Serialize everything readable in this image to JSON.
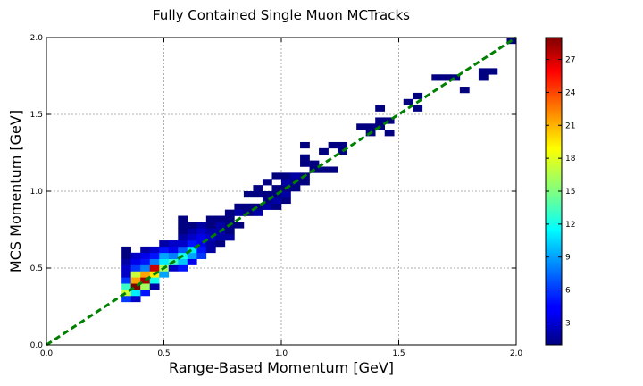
{
  "chart_data": {
    "type": "heatmap",
    "title": "Fully Contained Single Muon MCTracks",
    "xlabel": "Range-Based Momentum [GeV]",
    "ylabel": "MCS Momentum [GeV]",
    "xlim": [
      0.0,
      2.0
    ],
    "ylim": [
      0.0,
      2.0
    ],
    "xticks": [
      "0.0",
      "0.5",
      "1.0",
      "1.5",
      "2.0"
    ],
    "yticks": [
      "0.0",
      "0.5",
      "1.0",
      "1.5",
      "2.0"
    ],
    "bin_width": 0.04,
    "grid": true,
    "colormap": "jet",
    "colorbar": {
      "min": 1,
      "max": 29,
      "ticks": [
        "3",
        "6",
        "9",
        "12",
        "15",
        "18",
        "21",
        "24",
        "27"
      ]
    },
    "reference_line": {
      "from": [
        0.0,
        0.0
      ],
      "to": [
        2.0,
        2.0
      ],
      "color": "#008000",
      "style": "dashed"
    },
    "bins": [
      {
        "x": 0.32,
        "y": 0.28,
        "v": 6
      },
      {
        "x": 0.36,
        "y": 0.28,
        "v": 3
      },
      {
        "x": 0.32,
        "y": 0.32,
        "v": 17
      },
      {
        "x": 0.36,
        "y": 0.32,
        "v": 11
      },
      {
        "x": 0.4,
        "y": 0.32,
        "v": 5
      },
      {
        "x": 0.32,
        "y": 0.36,
        "v": 13
      },
      {
        "x": 0.36,
        "y": 0.36,
        "v": 29
      },
      {
        "x": 0.4,
        "y": 0.36,
        "v": 16
      },
      {
        "x": 0.44,
        "y": 0.36,
        "v": 2
      },
      {
        "x": 0.32,
        "y": 0.4,
        "v": 6
      },
      {
        "x": 0.36,
        "y": 0.4,
        "v": 21
      },
      {
        "x": 0.4,
        "y": 0.4,
        "v": 28
      },
      {
        "x": 0.44,
        "y": 0.4,
        "v": 12
      },
      {
        "x": 0.32,
        "y": 0.44,
        "v": 3
      },
      {
        "x": 0.36,
        "y": 0.44,
        "v": 17
      },
      {
        "x": 0.4,
        "y": 0.44,
        "v": 21
      },
      {
        "x": 0.44,
        "y": 0.44,
        "v": 19
      },
      {
        "x": 0.48,
        "y": 0.44,
        "v": 9
      },
      {
        "x": 0.32,
        "y": 0.48,
        "v": 3
      },
      {
        "x": 0.36,
        "y": 0.48,
        "v": 6
      },
      {
        "x": 0.4,
        "y": 0.48,
        "v": 8
      },
      {
        "x": 0.44,
        "y": 0.48,
        "v": 27
      },
      {
        "x": 0.48,
        "y": 0.48,
        "v": 16
      },
      {
        "x": 0.52,
        "y": 0.48,
        "v": 3
      },
      {
        "x": 0.56,
        "y": 0.48,
        "v": 5
      },
      {
        "x": 0.32,
        "y": 0.52,
        "v": 2
      },
      {
        "x": 0.36,
        "y": 0.52,
        "v": 4
      },
      {
        "x": 0.4,
        "y": 0.52,
        "v": 5
      },
      {
        "x": 0.44,
        "y": 0.52,
        "v": 8
      },
      {
        "x": 0.48,
        "y": 0.52,
        "v": 11
      },
      {
        "x": 0.52,
        "y": 0.52,
        "v": 13
      },
      {
        "x": 0.56,
        "y": 0.52,
        "v": 10
      },
      {
        "x": 0.6,
        "y": 0.52,
        "v": 4
      },
      {
        "x": 0.32,
        "y": 0.56,
        "v": 1
      },
      {
        "x": 0.36,
        "y": 0.56,
        "v": 3
      },
      {
        "x": 0.4,
        "y": 0.56,
        "v": 4
      },
      {
        "x": 0.44,
        "y": 0.56,
        "v": 5
      },
      {
        "x": 0.48,
        "y": 0.56,
        "v": 9
      },
      {
        "x": 0.52,
        "y": 0.56,
        "v": 8
      },
      {
        "x": 0.56,
        "y": 0.56,
        "v": 12
      },
      {
        "x": 0.6,
        "y": 0.56,
        "v": 9
      },
      {
        "x": 0.64,
        "y": 0.56,
        "v": 6
      },
      {
        "x": 0.32,
        "y": 0.6,
        "v": 1
      },
      {
        "x": 0.4,
        "y": 0.6,
        "v": 2
      },
      {
        "x": 0.44,
        "y": 0.6,
        "v": 3
      },
      {
        "x": 0.48,
        "y": 0.6,
        "v": 5
      },
      {
        "x": 0.52,
        "y": 0.6,
        "v": 4
      },
      {
        "x": 0.56,
        "y": 0.6,
        "v": 7
      },
      {
        "x": 0.6,
        "y": 0.6,
        "v": 11
      },
      {
        "x": 0.64,
        "y": 0.6,
        "v": 5
      },
      {
        "x": 0.68,
        "y": 0.6,
        "v": 2
      },
      {
        "x": 0.48,
        "y": 0.64,
        "v": 2
      },
      {
        "x": 0.52,
        "y": 0.64,
        "v": 3
      },
      {
        "x": 0.56,
        "y": 0.64,
        "v": 3
      },
      {
        "x": 0.6,
        "y": 0.64,
        "v": 5
      },
      {
        "x": 0.64,
        "y": 0.64,
        "v": 4
      },
      {
        "x": 0.68,
        "y": 0.64,
        "v": 2
      },
      {
        "x": 0.72,
        "y": 0.64,
        "v": 1
      },
      {
        "x": 0.56,
        "y": 0.68,
        "v": 2
      },
      {
        "x": 0.6,
        "y": 0.68,
        "v": 3
      },
      {
        "x": 0.64,
        "y": 0.68,
        "v": 4
      },
      {
        "x": 0.68,
        "y": 0.68,
        "v": 3
      },
      {
        "x": 0.72,
        "y": 0.68,
        "v": 2
      },
      {
        "x": 0.76,
        "y": 0.68,
        "v": 2
      },
      {
        "x": 0.56,
        "y": 0.72,
        "v": 1
      },
      {
        "x": 0.6,
        "y": 0.72,
        "v": 2
      },
      {
        "x": 0.64,
        "y": 0.72,
        "v": 3
      },
      {
        "x": 0.68,
        "y": 0.72,
        "v": 2
      },
      {
        "x": 0.72,
        "y": 0.72,
        "v": 2
      },
      {
        "x": 0.76,
        "y": 0.72,
        "v": 1
      },
      {
        "x": 0.56,
        "y": 0.76,
        "v": 1
      },
      {
        "x": 0.6,
        "y": 0.76,
        "v": 1
      },
      {
        "x": 0.64,
        "y": 0.76,
        "v": 2
      },
      {
        "x": 0.68,
        "y": 0.76,
        "v": 1
      },
      {
        "x": 0.72,
        "y": 0.76,
        "v": 2
      },
      {
        "x": 0.76,
        "y": 0.76,
        "v": 1
      },
      {
        "x": 0.8,
        "y": 0.76,
        "v": 1
      },
      {
        "x": 0.56,
        "y": 0.8,
        "v": 1
      },
      {
        "x": 0.68,
        "y": 0.8,
        "v": 1
      },
      {
        "x": 0.72,
        "y": 0.8,
        "v": 1
      },
      {
        "x": 0.76,
        "y": 0.8,
        "v": 1
      },
      {
        "x": 0.76,
        "y": 0.84,
        "v": 1
      },
      {
        "x": 0.8,
        "y": 0.84,
        "v": 2
      },
      {
        "x": 0.84,
        "y": 0.84,
        "v": 1
      },
      {
        "x": 0.88,
        "y": 0.84,
        "v": 2
      },
      {
        "x": 0.8,
        "y": 0.88,
        "v": 1
      },
      {
        "x": 0.84,
        "y": 0.88,
        "v": 1
      },
      {
        "x": 0.88,
        "y": 0.88,
        "v": 1
      },
      {
        "x": 0.92,
        "y": 0.88,
        "v": 2
      },
      {
        "x": 0.96,
        "y": 0.88,
        "v": 1
      },
      {
        "x": 0.92,
        "y": 0.92,
        "v": 1
      },
      {
        "x": 0.96,
        "y": 0.92,
        "v": 2
      },
      {
        "x": 1.0,
        "y": 0.92,
        "v": 1
      },
      {
        "x": 0.84,
        "y": 0.96,
        "v": 1
      },
      {
        "x": 0.88,
        "y": 0.96,
        "v": 1
      },
      {
        "x": 0.92,
        "y": 0.96,
        "v": 1
      },
      {
        "x": 0.96,
        "y": 0.96,
        "v": 1
      },
      {
        "x": 1.0,
        "y": 0.96,
        "v": 2
      },
      {
        "x": 0.88,
        "y": 1.0,
        "v": 1
      },
      {
        "x": 0.96,
        "y": 1.0,
        "v": 1
      },
      {
        "x": 1.0,
        "y": 1.0,
        "v": 1
      },
      {
        "x": 1.04,
        "y": 1.0,
        "v": 1
      },
      {
        "x": 0.92,
        "y": 1.04,
        "v": 1
      },
      {
        "x": 1.0,
        "y": 1.04,
        "v": 2
      },
      {
        "x": 1.04,
        "y": 1.04,
        "v": 1
      },
      {
        "x": 1.08,
        "y": 1.04,
        "v": 1
      },
      {
        "x": 0.96,
        "y": 1.08,
        "v": 1
      },
      {
        "x": 1.0,
        "y": 1.08,
        "v": 1
      },
      {
        "x": 1.04,
        "y": 1.08,
        "v": 2
      },
      {
        "x": 1.08,
        "y": 1.08,
        "v": 1
      },
      {
        "x": 1.12,
        "y": 1.12,
        "v": 1
      },
      {
        "x": 1.16,
        "y": 1.12,
        "v": 1
      },
      {
        "x": 1.2,
        "y": 1.12,
        "v": 1
      },
      {
        "x": 1.08,
        "y": 1.16,
        "v": 1
      },
      {
        "x": 1.12,
        "y": 1.16,
        "v": 1
      },
      {
        "x": 1.08,
        "y": 1.2,
        "v": 1
      },
      {
        "x": 1.16,
        "y": 1.24,
        "v": 1
      },
      {
        "x": 1.24,
        "y": 1.24,
        "v": 1
      },
      {
        "x": 1.2,
        "y": 1.28,
        "v": 1
      },
      {
        "x": 1.24,
        "y": 1.28,
        "v": 1
      },
      {
        "x": 1.08,
        "y": 1.28,
        "v": 1
      },
      {
        "x": 1.36,
        "y": 1.36,
        "v": 1
      },
      {
        "x": 1.44,
        "y": 1.36,
        "v": 1
      },
      {
        "x": 1.32,
        "y": 1.4,
        "v": 1
      },
      {
        "x": 1.36,
        "y": 1.4,
        "v": 1
      },
      {
        "x": 1.4,
        "y": 1.4,
        "v": 1
      },
      {
        "x": 1.4,
        "y": 1.44,
        "v": 1
      },
      {
        "x": 1.44,
        "y": 1.44,
        "v": 1
      },
      {
        "x": 1.4,
        "y": 1.52,
        "v": 1
      },
      {
        "x": 1.56,
        "y": 1.52,
        "v": 1
      },
      {
        "x": 1.52,
        "y": 1.56,
        "v": 1
      },
      {
        "x": 1.56,
        "y": 1.6,
        "v": 1
      },
      {
        "x": 1.76,
        "y": 1.64,
        "v": 1
      },
      {
        "x": 1.64,
        "y": 1.72,
        "v": 1
      },
      {
        "x": 1.68,
        "y": 1.72,
        "v": 1
      },
      {
        "x": 1.72,
        "y": 1.72,
        "v": 1
      },
      {
        "x": 1.84,
        "y": 1.72,
        "v": 1
      },
      {
        "x": 1.84,
        "y": 1.76,
        "v": 1
      },
      {
        "x": 1.88,
        "y": 1.76,
        "v": 1
      },
      {
        "x": 1.96,
        "y": 1.96,
        "v": 1
      }
    ]
  }
}
